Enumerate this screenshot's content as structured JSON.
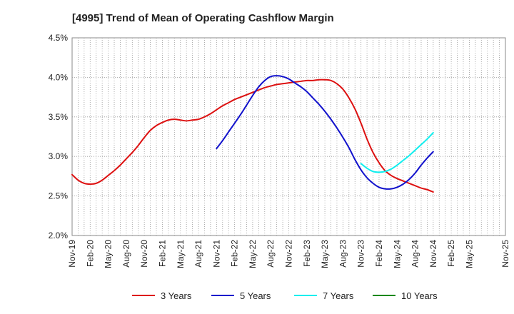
{
  "chart_data": {
    "type": "line",
    "title": "[4995]  Trend of Mean of Operating Cashflow Margin",
    "xlabel": "",
    "ylabel": "",
    "ylim": [
      2.0,
      4.5
    ],
    "y_ticks": [
      "2.0%",
      "2.5%",
      "3.0%",
      "3.5%",
      "4.0%",
      "4.5%"
    ],
    "y_tick_values": [
      2.0,
      2.5,
      3.0,
      3.5,
      4.0,
      4.5
    ],
    "x_tick_labels": [
      "Nov-19",
      "Feb-20",
      "May-20",
      "Aug-20",
      "Nov-20",
      "Feb-21",
      "May-21",
      "Aug-21",
      "Nov-21",
      "Feb-22",
      "May-22",
      "Aug-22",
      "Nov-22",
      "Feb-23",
      "May-23",
      "Aug-23",
      "Nov-23",
      "Feb-24",
      "May-24",
      "Aug-24",
      "Nov-24",
      "Feb-25",
      "May-25",
      "Nov-25"
    ],
    "x_tick_index": [
      0,
      3,
      6,
      9,
      12,
      15,
      18,
      21,
      24,
      27,
      30,
      33,
      36,
      39,
      42,
      45,
      48,
      51,
      54,
      57,
      60,
      63,
      66,
      72
    ],
    "x_index_range": [
      0,
      72
    ],
    "grid": true,
    "legend_position": "bottom",
    "series": [
      {
        "name": "3 Years",
        "color": "#dd1111",
        "x_index": [
          0,
          1,
          2,
          3,
          4,
          5,
          6,
          7,
          8,
          9,
          10,
          11,
          12,
          13,
          14,
          15,
          16,
          17,
          18,
          19,
          20,
          21,
          22,
          23,
          24,
          25,
          26,
          27,
          28,
          29,
          30,
          31,
          32,
          33,
          34,
          35,
          36,
          37,
          38,
          39,
          40,
          41,
          42,
          43,
          44,
          45,
          46,
          47,
          48,
          49,
          50,
          51,
          52,
          53,
          54,
          55,
          56,
          57,
          58,
          59,
          60
        ],
        "values": [
          2.77,
          2.7,
          2.66,
          2.65,
          2.66,
          2.7,
          2.76,
          2.82,
          2.89,
          2.97,
          3.05,
          3.14,
          3.24,
          3.33,
          3.39,
          3.43,
          3.46,
          3.47,
          3.46,
          3.45,
          3.46,
          3.47,
          3.5,
          3.54,
          3.59,
          3.64,
          3.68,
          3.72,
          3.75,
          3.78,
          3.81,
          3.84,
          3.87,
          3.89,
          3.91,
          3.92,
          3.93,
          3.94,
          3.95,
          3.96,
          3.96,
          3.97,
          3.97,
          3.96,
          3.92,
          3.85,
          3.74,
          3.6,
          3.42,
          3.22,
          3.05,
          2.92,
          2.82,
          2.76,
          2.72,
          2.69,
          2.66,
          2.63,
          2.6,
          2.58,
          2.55
        ]
      },
      {
        "name": "5 Years",
        "color": "#1111cc",
        "x_index": [
          24,
          25,
          26,
          27,
          28,
          29,
          30,
          31,
          32,
          33,
          34,
          35,
          36,
          37,
          38,
          39,
          40,
          41,
          42,
          43,
          44,
          45,
          46,
          47,
          48,
          49,
          50,
          51,
          52,
          53,
          54,
          55,
          56,
          57,
          58,
          59,
          60
        ],
        "values": [
          3.1,
          3.2,
          3.31,
          3.42,
          3.53,
          3.65,
          3.77,
          3.88,
          3.96,
          4.01,
          4.02,
          4.01,
          3.98,
          3.93,
          3.88,
          3.82,
          3.74,
          3.66,
          3.57,
          3.47,
          3.36,
          3.24,
          3.11,
          2.96,
          2.83,
          2.73,
          2.66,
          2.61,
          2.59,
          2.59,
          2.61,
          2.65,
          2.71,
          2.79,
          2.89,
          2.98,
          3.06
        ]
      },
      {
        "name": "7 Years",
        "color": "#11eeee",
        "x_index": [
          48,
          49,
          50,
          51,
          52,
          53,
          54,
          55,
          56,
          57,
          58,
          59,
          60
        ],
        "values": [
          2.91,
          2.85,
          2.81,
          2.8,
          2.81,
          2.84,
          2.89,
          2.95,
          3.01,
          3.08,
          3.15,
          3.22,
          3.3
        ]
      },
      {
        "name": "10 Years",
        "color": "#118811",
        "x_index": [],
        "values": []
      }
    ]
  }
}
